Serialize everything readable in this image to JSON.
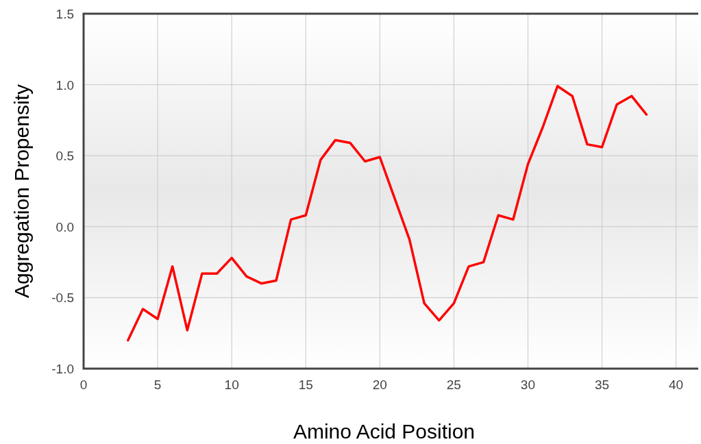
{
  "chart_data": {
    "type": "line",
    "xlabel": "Amino Acid Position",
    "ylabel": "Aggregation Propensity",
    "x": [
      3,
      4,
      5,
      6,
      7,
      8,
      9,
      10,
      11,
      12,
      13,
      14,
      15,
      16,
      17,
      18,
      19,
      20,
      21,
      22,
      23,
      24,
      25,
      26,
      27,
      28,
      29,
      30,
      31,
      32,
      33,
      34,
      35,
      36,
      37,
      38
    ],
    "series": [
      {
        "color": "#ff0000",
        "values": [
          -0.8,
          -0.58,
          -0.65,
          -0.28,
          -0.73,
          -0.33,
          -0.33,
          -0.22,
          -0.35,
          -0.4,
          -0.38,
          0.05,
          0.08,
          0.47,
          0.61,
          0.59,
          0.46,
          0.49,
          0.2,
          -0.09,
          -0.54,
          -0.66,
          -0.54,
          -0.28,
          -0.25,
          0.08,
          0.05,
          0.44,
          0.7,
          0.99,
          0.92,
          0.58,
          0.56,
          0.86,
          0.92,
          0.79
        ]
      }
    ],
    "xlim": [
      0,
      41.5
    ],
    "xticks": [
      0,
      5,
      10,
      15,
      20,
      25,
      30,
      35,
      40
    ],
    "ylim": [
      -1,
      1.5
    ],
    "yticks": [
      {
        "value": -1,
        "label": "-1.0"
      },
      {
        "value": -0.5,
        "label": "-0.5"
      },
      {
        "value": 0,
        "label": "0.0"
      },
      {
        "value": 0.5,
        "label": "0.5"
      },
      {
        "value": 1,
        "label": "1.0"
      },
      {
        "value": 1.5,
        "label": "1.5"
      }
    ],
    "grid": true,
    "marker": "none",
    "line_style": "solid"
  }
}
